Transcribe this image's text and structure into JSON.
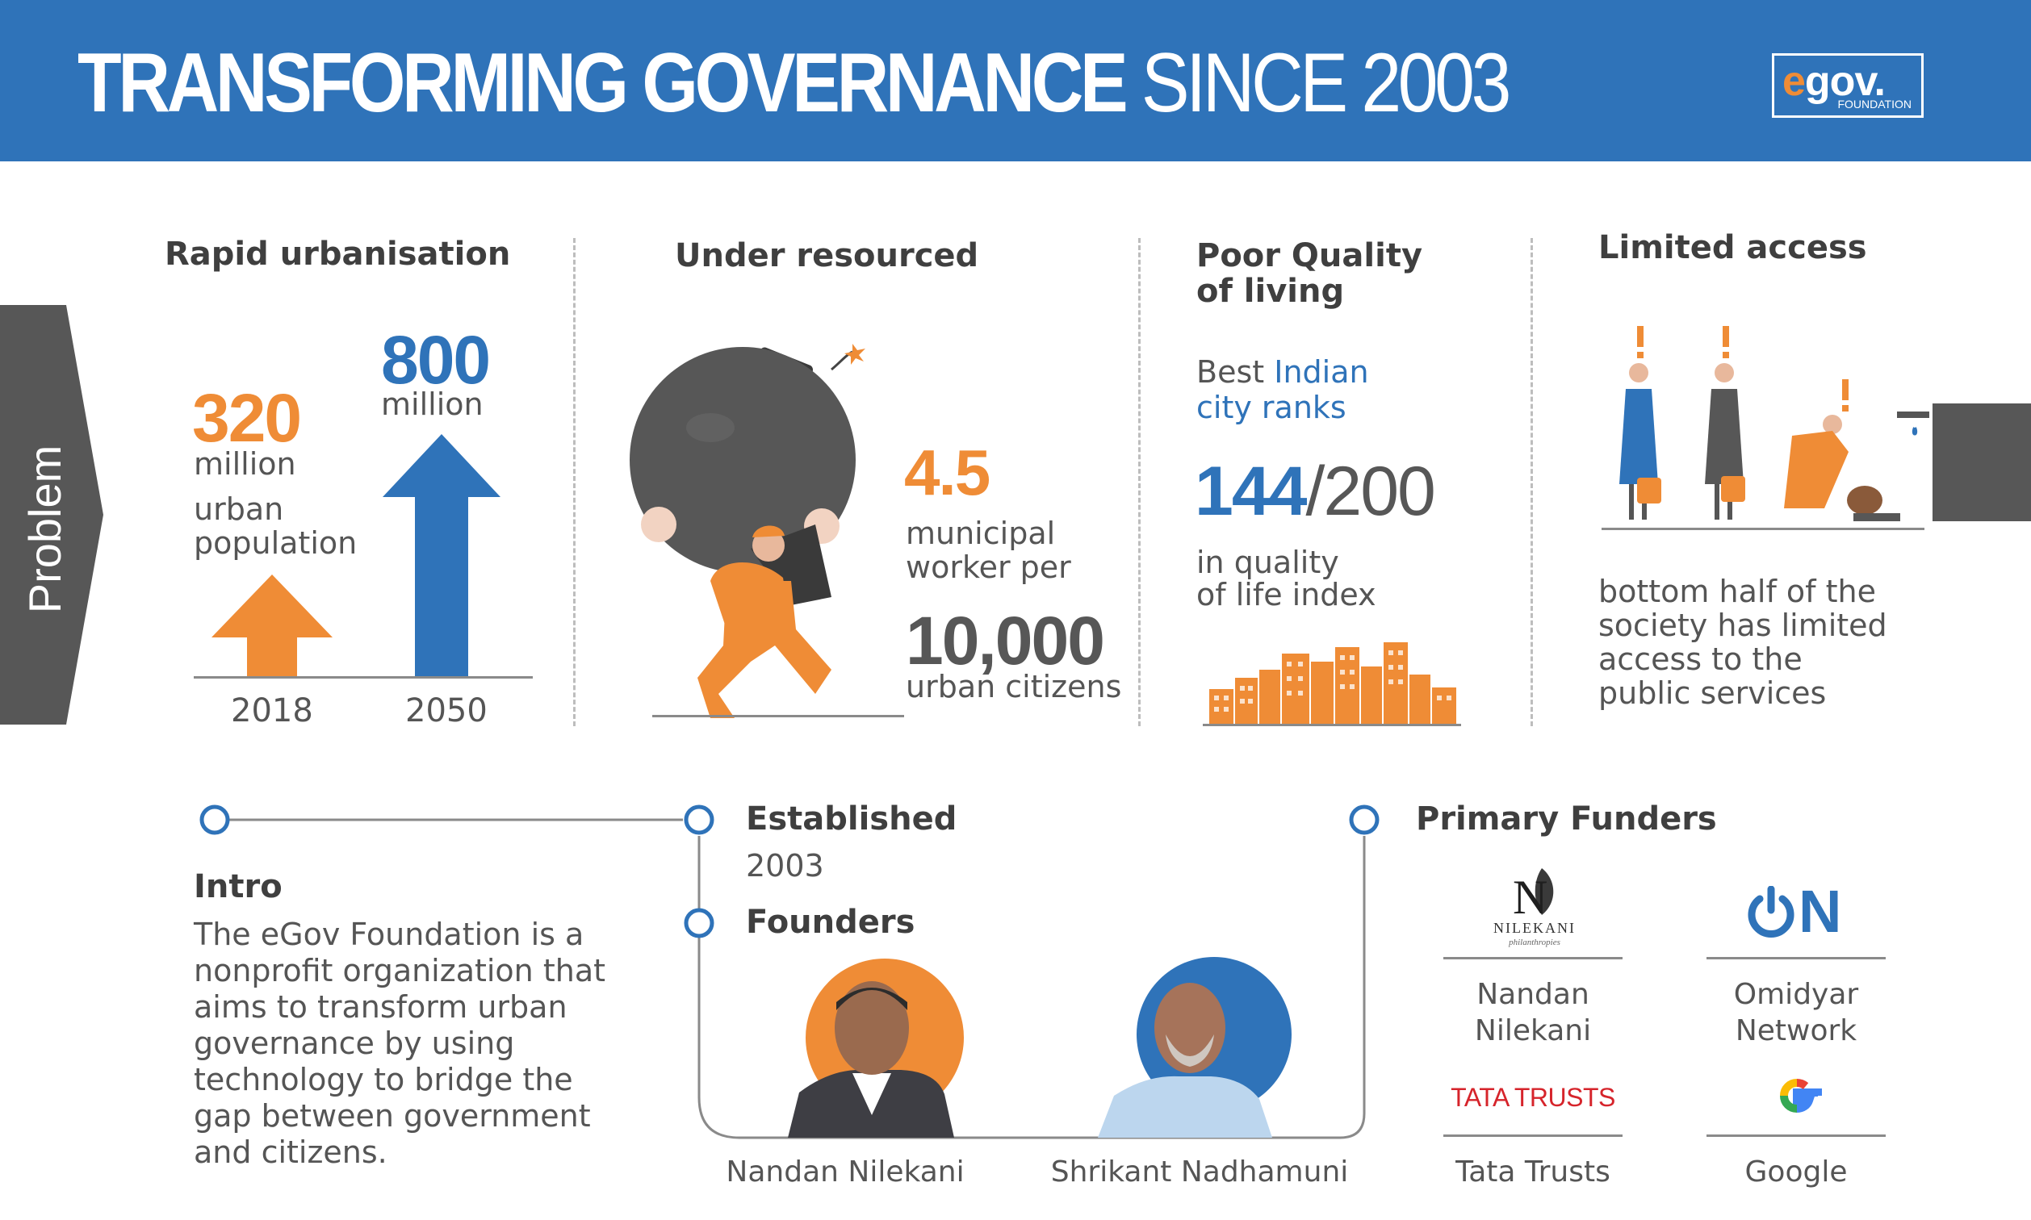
{
  "header": {
    "title_bold": "TRANSFORMING GOVERNANCE",
    "title_light": "SINCE 2003",
    "logo_text": "egov",
    "logo_sub": "FOUNDATION"
  },
  "problem_tab": {
    "label": "Problem"
  },
  "urbanisation": {
    "title": "Rapid urbanisation",
    "value_2018": "320",
    "unit_2018": "million",
    "desc_line1": "urban",
    "desc_line2": "population",
    "value_2050": "800",
    "unit_2050": "million",
    "year_2018": "2018",
    "year_2050": "2050"
  },
  "under_resourced": {
    "title": "Under resourced",
    "value": "4.5",
    "desc_line1": "municipal",
    "desc_line2": "worker per",
    "value2": "10,000",
    "desc2": "urban citizens"
  },
  "quality": {
    "title_line1": "Poor Quality",
    "title_line2": "of living",
    "rank_pre": "Best ",
    "rank_hl": "Indian",
    "rank_line2": "city ranks",
    "rank_value": "144",
    "rank_total": "/200",
    "desc_line1": "in quality",
    "desc_line2": "of life index"
  },
  "access": {
    "title": "Limited access",
    "desc_line1": "bottom half of the",
    "desc_line2": "society has limited",
    "desc_line3": "access to the",
    "desc_line4": "public services"
  },
  "intro": {
    "title": "Intro",
    "lines": [
      "The eGov Foundation is a",
      "nonprofit organization that",
      "aims to transform urban",
      "governance by using",
      "technology to bridge the",
      "gap between government",
      "and citizens."
    ]
  },
  "established": {
    "title": "Established",
    "year": "2003"
  },
  "founders": {
    "title": "Founders",
    "names": [
      "Nandan Nilekani",
      "Shrikant Nadhamuni"
    ]
  },
  "funders": {
    "title": "Primary Funders",
    "nilekani_logo": "NILEKANI",
    "nilekani_logo_sub": "philanthropies",
    "nilekani_name_1": "Nandan",
    "nilekani_name_2": "Nilekani",
    "omidyar_logo": "N",
    "omidyar_name_1": "Omidyar",
    "omidyar_name_2": "Network",
    "tata_logo": "TATA TRUSTS",
    "tata_name": "Tata Trusts",
    "google_name": "Google"
  },
  "colors": {
    "blue": "#2f73b9",
    "orange": "#ef8c36",
    "dark": "#3f3f3f",
    "grey": "#555555"
  }
}
